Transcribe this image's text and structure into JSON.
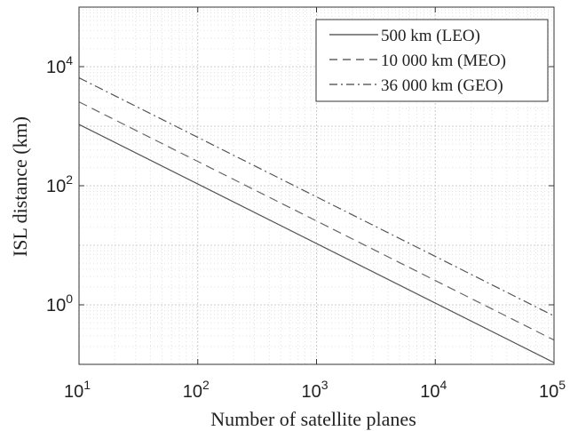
{
  "chart_data": {
    "type": "line",
    "xlabel": "Number of satellite planes",
    "ylabel": "ISL distance (km)",
    "xscale": "log",
    "yscale": "log",
    "xlim": [
      10,
      100000
    ],
    "ylim": [
      0.1,
      100000
    ],
    "grid": true,
    "minor_grid": true,
    "legend_position": "top-right",
    "x_ticks": [
      {
        "value": 10,
        "base": "10",
        "exp": "1"
      },
      {
        "value": 100,
        "base": "10",
        "exp": "2"
      },
      {
        "value": 1000,
        "base": "10",
        "exp": "3"
      },
      {
        "value": 10000,
        "base": "10",
        "exp": "4"
      },
      {
        "value": 100000,
        "base": "10",
        "exp": "5"
      }
    ],
    "y_ticks": [
      {
        "value": 1,
        "base": "10",
        "exp": "0"
      },
      {
        "value": 100,
        "base": "10",
        "exp": "2"
      },
      {
        "value": 10000,
        "base": "10",
        "exp": "4"
      }
    ],
    "series": [
      {
        "name": "500 km (LEO)",
        "line_style": "solid",
        "color": "#555555",
        "x": [
          10,
          100000
        ],
        "y": [
          1070,
          0.107
        ]
      },
      {
        "name": "10 000 km (MEO)",
        "line_style": "dashed",
        "color": "#666666",
        "x": [
          10,
          100000
        ],
        "y": [
          2560,
          0.256
        ]
      },
      {
        "name": "36 000 km (GEO)",
        "line_style": "dashdot",
        "color": "#555555",
        "x": [
          10,
          100000
        ],
        "y": [
          6500,
          0.65
        ]
      }
    ]
  }
}
